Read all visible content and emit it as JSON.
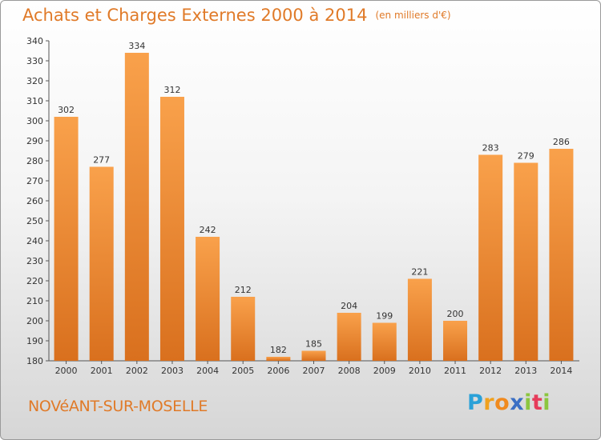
{
  "header": {
    "title": "Achats et Charges Externes 2000 à 2014",
    "unit": "(en milliers d'€)"
  },
  "footer": {
    "city": "NOVéANT-SUR-MOSELLE"
  },
  "logo": {
    "letters": [
      "P",
      "r",
      "o",
      "x",
      "i",
      "t",
      "i"
    ]
  },
  "chart_data": {
    "type": "bar",
    "title": "Achats et Charges Externes 2000 à 2014",
    "subtitle": "(en milliers d'€)",
    "xlabel": "",
    "ylabel": "",
    "categories": [
      "2000",
      "2001",
      "2002",
      "2003",
      "2004",
      "2005",
      "2006",
      "2007",
      "2008",
      "2009",
      "2010",
      "2011",
      "2012",
      "2013",
      "2014"
    ],
    "values": [
      302,
      277,
      334,
      312,
      242,
      212,
      182,
      185,
      204,
      199,
      221,
      200,
      283,
      279,
      286
    ],
    "ylim": [
      180,
      340
    ],
    "yticks": [
      180,
      190,
      200,
      210,
      220,
      230,
      240,
      250,
      260,
      270,
      280,
      290,
      300,
      310,
      320,
      330,
      340
    ],
    "grid": false,
    "bar_color": "#f5963a"
  }
}
